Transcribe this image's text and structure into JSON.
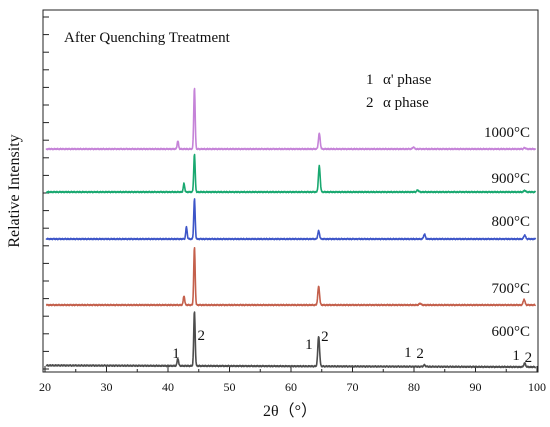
{
  "chart_data": {
    "type": "line",
    "title": "After Quenching Treatment",
    "xlabel": "2θ（°）",
    "ylabel": "Relative Intensity",
    "xlim": [
      20,
      100
    ],
    "x_ticks": [
      "20",
      "30",
      "40",
      "50",
      "60",
      "70",
      "80",
      "90",
      "100"
    ],
    "legend": [
      {
        "marker": "1",
        "text": "α' phase"
      },
      {
        "marker": "2",
        "text": "α  phase"
      }
    ],
    "peak_labels": [
      {
        "text": "1",
        "x": 41.3
      },
      {
        "text": "2",
        "x": 45.4
      },
      {
        "text": "1",
        "x": 62.9
      },
      {
        "text": "2",
        "x": 65.5
      },
      {
        "text": "1",
        "x": 79.0
      },
      {
        "text": "2",
        "x": 81.0
      },
      {
        "text": "1",
        "x": 96.6
      },
      {
        "text": "2",
        "x": 98.6
      }
    ],
    "series": [
      {
        "name": "600°C",
        "color": "#4d4d4d",
        "peaks": [
          {
            "x": 41.6,
            "height": 0.14
          },
          {
            "x": 44.3,
            "height": 1.0
          },
          {
            "x": 64.5,
            "height": 0.55
          },
          {
            "x": 81.7,
            "height": 0.03
          },
          {
            "x": 98.0,
            "height": 0.07
          }
        ]
      },
      {
        "name": "700°C",
        "color": "#c4604c",
        "peaks": [
          {
            "x": 42.6,
            "height": 0.16
          },
          {
            "x": 44.3,
            "height": 1.0
          },
          {
            "x": 64.5,
            "height": 0.32
          },
          {
            "x": 81.0,
            "height": 0.03
          },
          {
            "x": 97.9,
            "height": 0.1
          }
        ]
      },
      {
        "name": "800°C",
        "color": "#3d55c8",
        "peaks": [
          {
            "x": 43.0,
            "height": 0.3
          },
          {
            "x": 44.3,
            "height": 1.0
          },
          {
            "x": 64.5,
            "height": 0.2
          },
          {
            "x": 81.7,
            "height": 0.12
          },
          {
            "x": 98.0,
            "height": 0.1
          }
        ]
      },
      {
        "name": "900°C",
        "color": "#19a870",
        "peaks": [
          {
            "x": 42.6,
            "height": 0.22
          },
          {
            "x": 44.3,
            "height": 1.0
          },
          {
            "x": 64.6,
            "height": 0.68
          },
          {
            "x": 80.6,
            "height": 0.05
          },
          {
            "x": 98.0,
            "height": 0.04
          }
        ]
      },
      {
        "name": "1000°C",
        "color": "#c583d8",
        "peaks": [
          {
            "x": 41.6,
            "height": 0.13
          },
          {
            "x": 44.3,
            "height": 1.0
          },
          {
            "x": 64.6,
            "height": 0.25
          },
          {
            "x": 79.9,
            "height": 0.03
          },
          {
            "x": 98.0,
            "height": 0.02
          }
        ]
      }
    ]
  }
}
